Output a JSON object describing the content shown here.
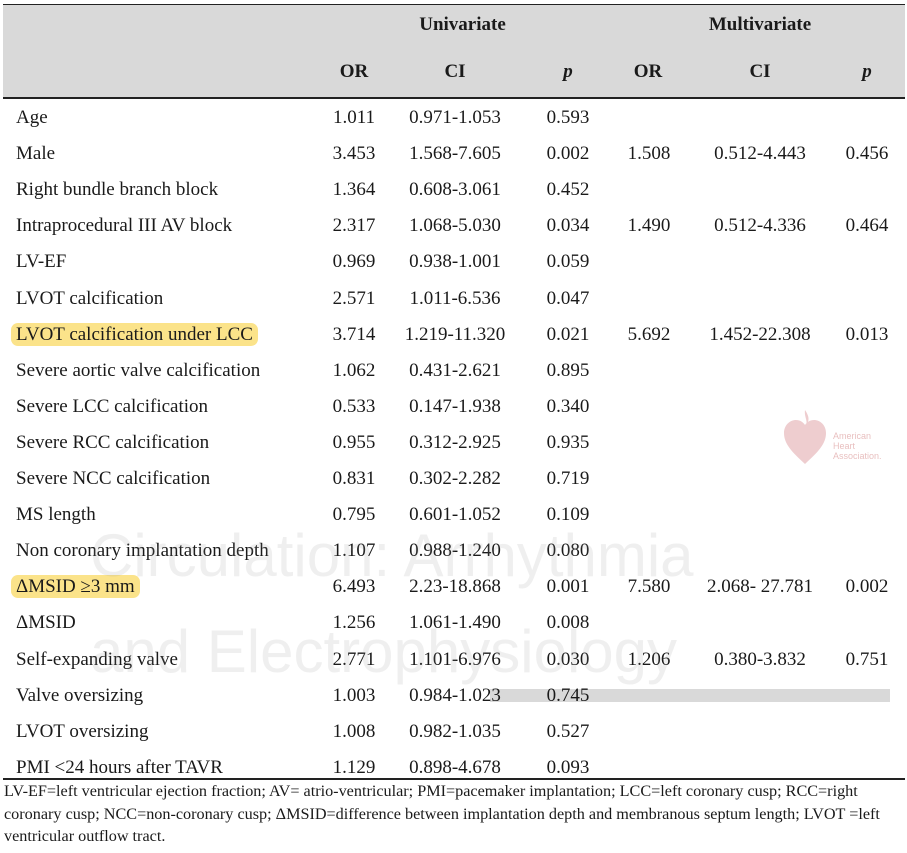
{
  "headers": {
    "univariate": "Univariate",
    "multivariate": "Multivariate",
    "or": "OR",
    "ci": "CI",
    "p": "p"
  },
  "rows": [
    {
      "label": "Age",
      "or": "1.011",
      "ci": "0.971-1.053",
      "p": "0.593",
      "m_or": "",
      "m_ci": "",
      "m_p": "",
      "highlight": false
    },
    {
      "label": "Male",
      "or": "3.453",
      "ci": "1.568-7.605",
      "p": "0.002",
      "m_or": "1.508",
      "m_ci": "0.512-4.443",
      "m_p": "0.456",
      "highlight": false
    },
    {
      "label": "Right bundle branch block",
      "or": "1.364",
      "ci": "0.608-3.061",
      "p": "0.452",
      "m_or": "",
      "m_ci": "",
      "m_p": "",
      "highlight": false
    },
    {
      "label": "Intraprocedural III AV block",
      "or": "2.317",
      "ci": "1.068-5.030",
      "p": "0.034",
      "m_or": "1.490",
      "m_ci": "0.512-4.336",
      "m_p": "0.464",
      "highlight": false
    },
    {
      "label": "LV-EF",
      "or": "0.969",
      "ci": "0.938-1.001",
      "p": "0.059",
      "m_or": "",
      "m_ci": "",
      "m_p": "",
      "highlight": false
    },
    {
      "label": "LVOT calcification",
      "or": "2.571",
      "ci": "1.011-6.536",
      "p": "0.047",
      "m_or": "",
      "m_ci": "",
      "m_p": "",
      "highlight": false
    },
    {
      "label": "LVOT calcification under LCC",
      "or": "3.714",
      "ci": "1.219-11.320",
      "p": "0.021",
      "m_or": "5.692",
      "m_ci": "1.452-22.308",
      "m_p": "0.013",
      "highlight": true
    },
    {
      "label": "Severe aortic valve calcification",
      "or": "1.062",
      "ci": "0.431-2.621",
      "p": "0.895",
      "m_or": "",
      "m_ci": "",
      "m_p": "",
      "highlight": false
    },
    {
      "label": "Severe LCC calcification",
      "or": "0.533",
      "ci": "0.147-1.938",
      "p": "0.340",
      "m_or": "",
      "m_ci": "",
      "m_p": "",
      "highlight": false
    },
    {
      "label": "Severe RCC calcification",
      "or": "0.955",
      "ci": "0.312-2.925",
      "p": "0.935",
      "m_or": "",
      "m_ci": "",
      "m_p": "",
      "highlight": false
    },
    {
      "label": "Severe NCC calcification",
      "or": "0.831",
      "ci": "0.302-2.282",
      "p": "0.719",
      "m_or": "",
      "m_ci": "",
      "m_p": "",
      "highlight": false
    },
    {
      "label": "MS length",
      "or": "0.795",
      "ci": "0.601-1.052",
      "p": "0.109",
      "m_or": "",
      "m_ci": "",
      "m_p": "",
      "highlight": false
    },
    {
      "label": "Non coronary implantation depth",
      "or": "1.107",
      "ci": "0.988-1.240",
      "p": "0.080",
      "m_or": "",
      "m_ci": "",
      "m_p": "",
      "highlight": false
    },
    {
      "label": "ΔMSID ≥3 mm",
      "or": "6.493",
      "ci": "2.23-18.868",
      "p": "0.001",
      "m_or": "7.580",
      "m_ci": "2.068- 27.781",
      "m_p": "0.002",
      "highlight": true
    },
    {
      "label": "ΔMSID",
      "or": "1.256",
      "ci": "1.061-1.490",
      "p": "0.008",
      "m_or": "",
      "m_ci": "",
      "m_p": "",
      "highlight": false
    },
    {
      "label": "Self-expanding valve",
      "or": "2.771",
      "ci": "1.101-6.976",
      "p": "0.030",
      "m_or": "1.206",
      "m_ci": "0.380-3.832",
      "m_p": "0.751",
      "highlight": false
    },
    {
      "label": "Valve oversizing",
      "or": "1.003",
      "ci": "0.984-1.023",
      "p": "0.745",
      "m_or": "",
      "m_ci": "",
      "m_p": "",
      "highlight": false
    },
    {
      "label": "LVOT oversizing",
      "or": "1.008",
      "ci": "0.982-1.035",
      "p": "0.527",
      "m_or": "",
      "m_ci": "",
      "m_p": "",
      "highlight": false
    },
    {
      "label": "PMI <24 hours after TAVR",
      "or": "1.129",
      "ci": "0.898-4.678",
      "p": "0.093",
      "m_or": "",
      "m_ci": "",
      "m_p": "",
      "highlight": false
    }
  ],
  "footnote": "LV-EF=left ventricular ejection fraction; AV= atrio-ventricular; PMI=pacemaker implantation; LCC=left coronary cusp; RCC=right coronary cusp; NCC=non-coronary cusp; ΔMSID=difference between implantation depth and membranous septum length; LVOT =left ventricular outflow tract.",
  "watermark": {
    "line1": "Circulation: Arrhythmia",
    "line2": "and Electrophysiology"
  },
  "logo": {
    "line1": "American",
    "line2": "Heart",
    "line3": "Association."
  },
  "colors": {
    "header_bg": "#d9d9d9",
    "highlight": "#fbe38a",
    "rule": "#222222"
  }
}
